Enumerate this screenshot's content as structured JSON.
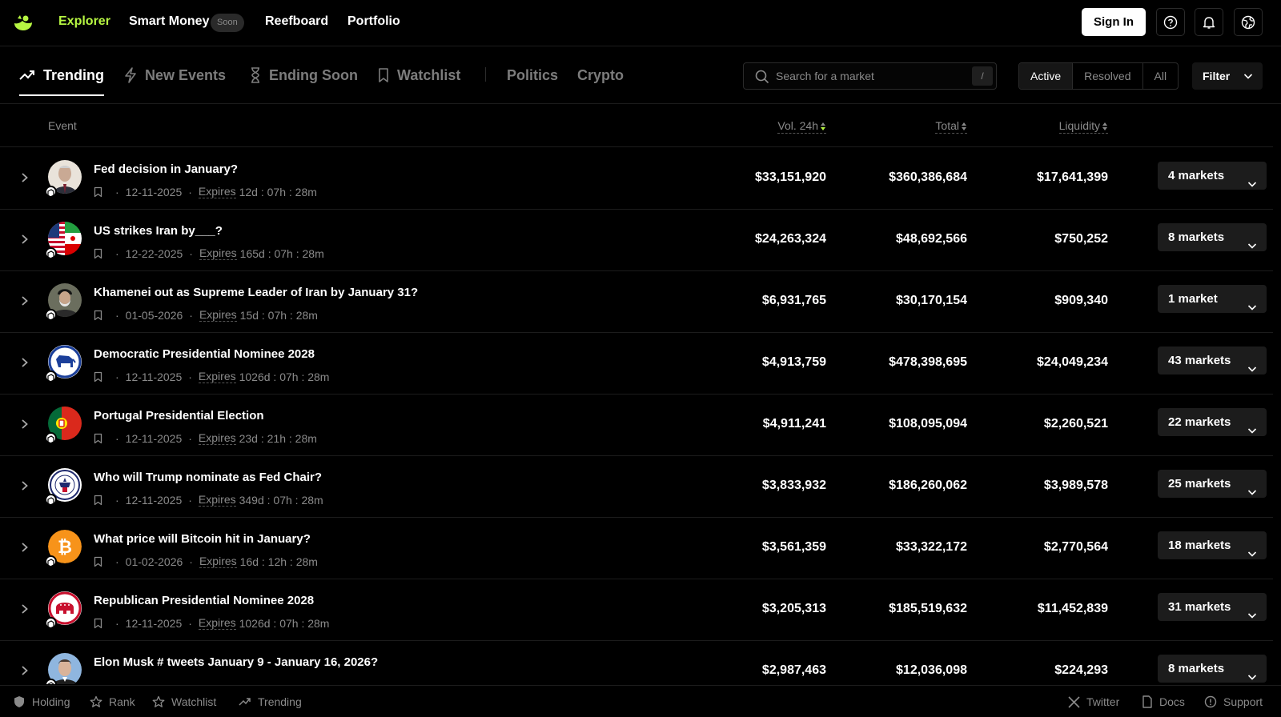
{
  "nav": {
    "explorer": "Explorer",
    "smart_money": "Smart Money",
    "soon": "Soon",
    "reefboard": "Reefboard",
    "portfolio": "Portfolio",
    "sign_in": "Sign In",
    "accent_color": "#b6f542"
  },
  "tabs": {
    "trending": "Trending",
    "new_events": "New Events",
    "ending_soon": "Ending Soon",
    "watchlist": "Watchlist",
    "politics": "Politics",
    "crypto": "Crypto"
  },
  "search": {
    "placeholder": "Search for a market",
    "shortcut": "/"
  },
  "status_filter": {
    "active": "Active",
    "resolved": "Resolved",
    "all": "All",
    "selected": "Active"
  },
  "filter_label": "Filter",
  "columns": {
    "event": "Event",
    "vol24h": "Vol. 24h",
    "total": "Total",
    "liquidity": "Liquidity"
  },
  "rows": [
    {
      "title": "Fed decision in January?",
      "date": "12-11-2025",
      "expires_label": "Expires",
      "expires": "12d : 07h : 28m",
      "vol24h": "$33,151,920",
      "total": "$360,386,684",
      "liquidity": "$17,641,399",
      "markets": "4 markets",
      "avatar": "powell-portrait"
    },
    {
      "title": "US strikes Iran by___?",
      "date": "12-22-2025",
      "expires_label": "Expires",
      "expires": "165d : 07h : 28m",
      "vol24h": "$24,263,324",
      "total": "$48,692,566",
      "liquidity": "$750,252",
      "markets": "8 markets",
      "avatar": "us-iran-flags"
    },
    {
      "title": "Khamenei out as Supreme Leader of Iran by January 31?",
      "date": "01-05-2026",
      "expires_label": "Expires",
      "expires": "15d : 07h : 28m",
      "vol24h": "$6,931,765",
      "total": "$30,170,154",
      "liquidity": "$909,340",
      "markets": "1 market",
      "avatar": "khamenei-portrait"
    },
    {
      "title": "Democratic Presidential Nominee 2028",
      "date": "12-11-2025",
      "expires_label": "Expires",
      "expires": "1026d : 07h : 28m",
      "vol24h": "$4,913,759",
      "total": "$478,398,695",
      "liquidity": "$24,049,234",
      "markets": "43 markets",
      "avatar": "democrat-logo"
    },
    {
      "title": "Portugal Presidential Election",
      "date": "12-11-2025",
      "expires_label": "Expires",
      "expires": "23d : 21h : 28m",
      "vol24h": "$4,911,241",
      "total": "$108,095,094",
      "liquidity": "$2,260,521",
      "markets": "22 markets",
      "avatar": "portugal-flag"
    },
    {
      "title": "Who will Trump nominate as Fed Chair?",
      "date": "12-11-2025",
      "expires_label": "Expires",
      "expires": "349d : 07h : 28m",
      "vol24h": "$3,833,932",
      "total": "$186,260,062",
      "liquidity": "$3,989,578",
      "markets": "25 markets",
      "avatar": "fed-seal"
    },
    {
      "title": "What price will Bitcoin hit in January?",
      "date": "01-02-2026",
      "expires_label": "Expires",
      "expires": "16d : 12h : 28m",
      "vol24h": "$3,561,359",
      "total": "$33,322,172",
      "liquidity": "$2,770,564",
      "markets": "18 markets",
      "avatar": "bitcoin-logo"
    },
    {
      "title": "Republican Presidential Nominee 2028",
      "date": "12-11-2025",
      "expires_label": "Expires",
      "expires": "1026d : 07h : 28m",
      "vol24h": "$3,205,313",
      "total": "$185,519,632",
      "liquidity": "$11,452,839",
      "markets": "31 markets",
      "avatar": "republican-logo"
    },
    {
      "title": "Elon Musk # tweets January 9 - January 16, 2026?",
      "date": "",
      "expires_label": "",
      "expires": "",
      "vol24h": "$2,987,463",
      "total": "$12,036,098",
      "liquidity": "$224,293",
      "markets": "8 markets",
      "avatar": "musk-portrait"
    }
  ],
  "footer": {
    "holding": "Holding",
    "rank": "Rank",
    "watchlist": "Watchlist",
    "trending": "Trending",
    "twitter": "Twitter",
    "docs": "Docs",
    "support": "Support"
  }
}
